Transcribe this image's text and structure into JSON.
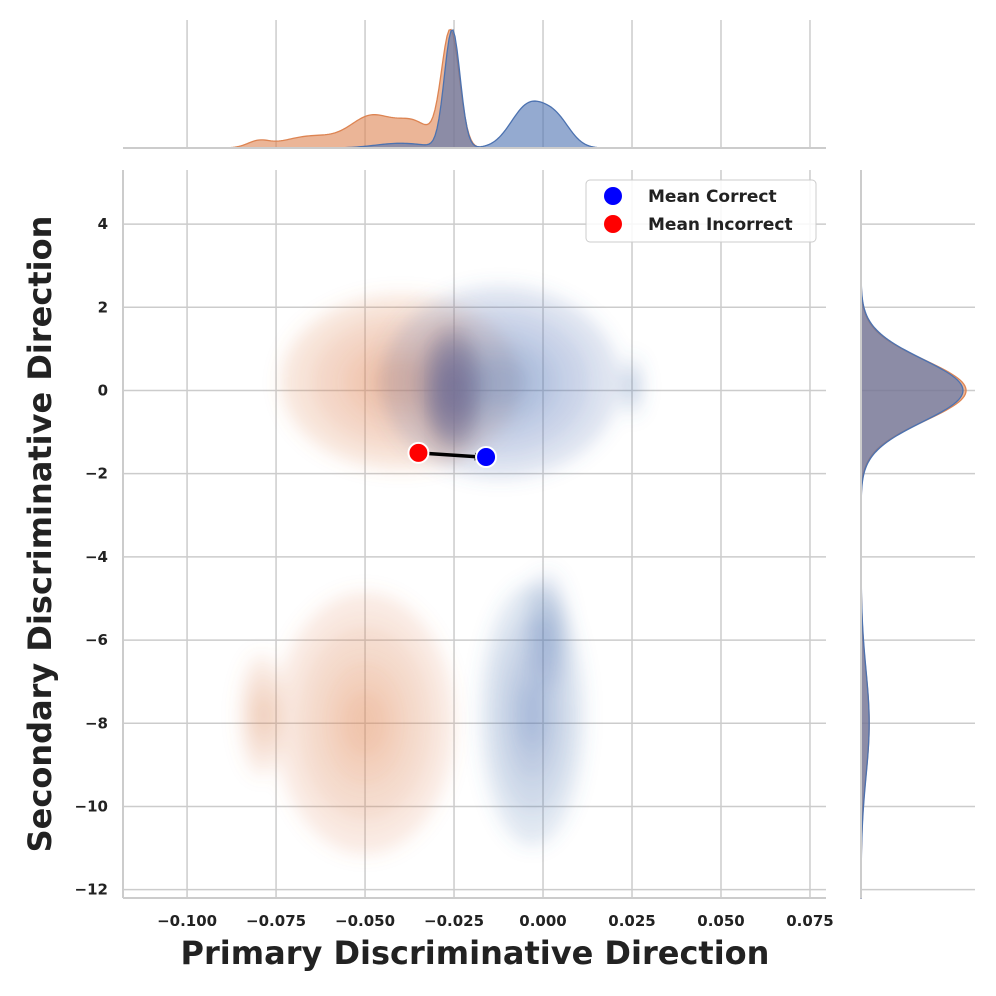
{
  "colors": {
    "correct": "#4c72b0",
    "incorrect": "#dd8452",
    "mean_correct": "#0000ff",
    "mean_incorrect": "#ff0000",
    "overlap": "#7a6f92"
  },
  "chart_data": {
    "type": "scatter",
    "subtype": "joint KDE plot with marginal densities",
    "xlabel": "Primary Discriminative Direction",
    "ylabel": "Secondary Discriminative Direction",
    "xlim": [
      -0.118,
      0.0795
    ],
    "ylim": [
      -12.2,
      5.3
    ],
    "x_ticks": [
      -0.1,
      -0.075,
      -0.05,
      -0.025,
      0.0,
      0.025,
      0.05,
      0.075
    ],
    "x_tick_labels": [
      "−0.100",
      "−0.075",
      "−0.050",
      "−0.025",
      "0.000",
      "0.025",
      "0.050",
      "0.075"
    ],
    "y_ticks": [
      4,
      2,
      0,
      -2,
      -4,
      -6,
      -8,
      -10,
      -12
    ],
    "y_tick_labels": [
      "4",
      "2",
      "0",
      "−2",
      "−4",
      "−6",
      "−8",
      "−10",
      "−12"
    ],
    "grid": true,
    "legend_position": "top-right",
    "legend": [
      {
        "label": "Mean Correct",
        "color": "#0000ff"
      },
      {
        "label": "Mean Incorrect",
        "color": "#ff0000"
      }
    ],
    "means": [
      {
        "name": "Mean Incorrect",
        "x": -0.035,
        "y": -1.5,
        "color": "#ff0000"
      },
      {
        "name": "Mean Correct",
        "x": -0.016,
        "y": -1.6,
        "color": "#0000ff"
      }
    ],
    "arrow": {
      "from": [
        -0.035,
        -1.5
      ],
      "to": [
        -0.0175,
        -1.6
      ]
    },
    "series": [
      {
        "name": "Correct",
        "color": "#4c72b0",
        "clusters": [
          {
            "x": -0.012,
            "y": 0.2,
            "sx": 0.016,
            "sy": 1.1,
            "w": 0.85
          },
          {
            "x": -0.025,
            "y": 0.0,
            "sx": 0.004,
            "sy": 0.7,
            "w": 1.0
          },
          {
            "x": 0.025,
            "y": 0.1,
            "sx": 0.0015,
            "sy": 0.35,
            "w": 0.12
          },
          {
            "x": -0.003,
            "y": -7.8,
            "sx": 0.007,
            "sy": 1.5,
            "w": 0.55
          },
          {
            "x": 0.001,
            "y": -5.8,
            "sx": 0.003,
            "sy": 0.7,
            "w": 0.2
          }
        ]
      },
      {
        "name": "Incorrect",
        "color": "#dd8452",
        "clusters": [
          {
            "x": -0.04,
            "y": 0.2,
            "sx": 0.016,
            "sy": 1.0,
            "w": 0.85
          },
          {
            "x": -0.026,
            "y": 0.0,
            "sx": 0.004,
            "sy": 0.8,
            "w": 1.0
          },
          {
            "x": -0.05,
            "y": -8.0,
            "sx": 0.012,
            "sy": 1.5,
            "w": 0.5
          },
          {
            "x": -0.079,
            "y": -7.8,
            "sx": 0.003,
            "sy": 0.7,
            "w": 0.15
          }
        ]
      }
    ],
    "marginal_x": {
      "Correct": [
        {
          "x": -0.0255,
          "s": 0.0022,
          "h": 1.0
        },
        {
          "x": -0.004,
          "s": 0.005,
          "h": 0.36
        },
        {
          "x": 0.004,
          "s": 0.004,
          "h": 0.2
        },
        {
          "x": -0.04,
          "s": 0.007,
          "h": 0.04
        }
      ],
      "Incorrect": [
        {
          "x": -0.026,
          "s": 0.0025,
          "h": 0.98
        },
        {
          "x": -0.048,
          "s": 0.006,
          "h": 0.26
        },
        {
          "x": -0.036,
          "s": 0.005,
          "h": 0.2
        },
        {
          "x": -0.065,
          "s": 0.008,
          "h": 0.1
        },
        {
          "x": -0.08,
          "s": 0.003,
          "h": 0.05
        }
      ]
    },
    "marginal_y": {
      "Correct": [
        {
          "y": 0.0,
          "s": 0.75,
          "h": 1.0
        },
        {
          "y": -8.0,
          "s": 1.3,
          "h": 0.08
        }
      ],
      "Incorrect": [
        {
          "y": 0.0,
          "s": 0.73,
          "h": 1.03
        },
        {
          "y": -8.0,
          "s": 1.25,
          "h": 0.08
        }
      ]
    }
  }
}
